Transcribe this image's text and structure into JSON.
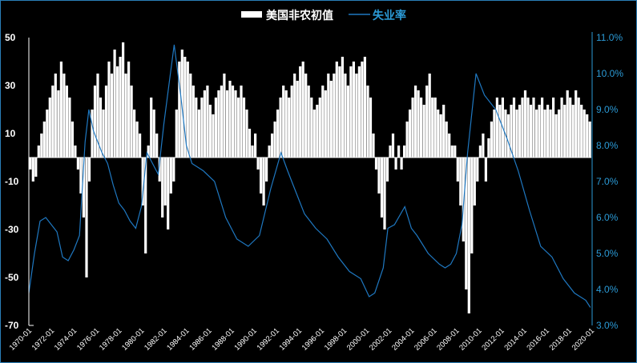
{
  "chart_data": {
    "type": "bar+line",
    "legend": {
      "placement": "top-center",
      "entries": [
        "美国非农初值",
        "失业率"
      ]
    },
    "colors": {
      "bars": "#ffffff",
      "line": "#1f78c1",
      "right_axis": "#2b9ad6",
      "background": "#000000"
    },
    "left_axis": {
      "ylim": [
        -70,
        50
      ],
      "ticks": [
        "50",
        "30",
        "10",
        "-10",
        "-30",
        "-50",
        "-70"
      ]
    },
    "right_axis": {
      "ylim": [
        3.0,
        11.0
      ],
      "ticks": [
        "11.0%",
        "10.0%",
        "9.0%",
        "8.0%",
        "7.0%",
        "6.0%",
        "5.0%",
        "4.0%",
        "3.0%"
      ]
    },
    "x_axis": {
      "range": [
        "1970-01",
        "2020-01"
      ],
      "ticks": [
        "1970-01",
        "1972-01",
        "1974-01",
        "1976-01",
        "1978-01",
        "1980-01",
        "1982-01",
        "1984-01",
        "1986-01",
        "1988-01",
        "1990-01",
        "1992-01",
        "1994-01",
        "1996-01",
        "1998-01",
        "2000-01",
        "2002-01",
        "2004-01",
        "2006-01",
        "2008-01",
        "2010-01",
        "2012-01",
        "2014-01",
        "2016-01",
        "2018-01",
        "2020-01"
      ]
    },
    "grid": false,
    "series": [
      {
        "name": "美国非农初值",
        "kind": "bar",
        "axis": "left",
        "start": "1970-01",
        "frequency": "quarterly",
        "values": [
          -5,
          -10,
          -8,
          5,
          10,
          15,
          20,
          25,
          30,
          35,
          28,
          40,
          35,
          30,
          25,
          15,
          5,
          -5,
          -15,
          -25,
          -50,
          -10,
          20,
          30,
          35,
          25,
          20,
          30,
          40,
          35,
          45,
          38,
          42,
          48,
          35,
          40,
          30,
          20,
          15,
          10,
          -20,
          -40,
          5,
          25,
          20,
          10,
          -10,
          -25,
          -20,
          -30,
          -15,
          -10,
          20,
          40,
          45,
          42,
          40,
          35,
          30,
          25,
          20,
          25,
          28,
          30,
          22,
          18,
          25,
          28,
          30,
          35,
          28,
          32,
          30,
          28,
          25,
          30,
          25,
          20,
          12,
          5,
          10,
          -5,
          -15,
          -20,
          -10,
          5,
          10,
          15,
          20,
          25,
          30,
          28,
          25,
          30,
          35,
          32,
          38,
          40,
          35,
          30,
          25,
          20,
          22,
          25,
          30,
          28,
          35,
          32,
          35,
          40,
          38,
          42,
          35,
          30,
          38,
          40,
          35,
          38,
          40,
          42,
          30,
          25,
          10,
          -5,
          -15,
          -25,
          -30,
          -10,
          5,
          10,
          -5,
          5,
          -5,
          5,
          15,
          20,
          25,
          30,
          28,
          25,
          22,
          30,
          35,
          25,
          25,
          20,
          18,
          22,
          15,
          10,
          5,
          5,
          -10,
          -20,
          -35,
          -55,
          -65,
          -40,
          -20,
          -10,
          5,
          10,
          -10,
          8,
          15,
          20,
          25,
          22,
          25,
          20,
          18,
          22,
          25,
          20,
          22,
          25,
          28,
          25,
          22,
          25,
          20,
          22,
          25,
          20,
          22,
          20,
          25,
          18,
          20,
          25,
          22,
          28,
          25,
          22,
          28,
          25,
          22,
          20,
          18,
          15
        ]
      },
      {
        "name": "失业率",
        "kind": "line",
        "axis": "right",
        "unit": "%",
        "points": [
          [
            "1970-01",
            3.9
          ],
          [
            "1970-07",
            5.0
          ],
          [
            "1971-01",
            5.9
          ],
          [
            "1971-07",
            6.0
          ],
          [
            "1972-01",
            5.8
          ],
          [
            "1972-07",
            5.6
          ],
          [
            "1973-01",
            4.9
          ],
          [
            "1973-07",
            4.8
          ],
          [
            "1974-01",
            5.1
          ],
          [
            "1974-07",
            5.5
          ],
          [
            "1975-01",
            8.1
          ],
          [
            "1975-05",
            9.0
          ],
          [
            "1975-10",
            8.4
          ],
          [
            "1976-07",
            7.8
          ],
          [
            "1977-01",
            7.5
          ],
          [
            "1977-07",
            6.9
          ],
          [
            "1978-01",
            6.4
          ],
          [
            "1978-07",
            6.2
          ],
          [
            "1979-01",
            5.9
          ],
          [
            "1979-07",
            5.7
          ],
          [
            "1980-01",
            6.3
          ],
          [
            "1980-07",
            7.8
          ],
          [
            "1981-01",
            7.5
          ],
          [
            "1981-07",
            7.2
          ],
          [
            "1982-01",
            8.6
          ],
          [
            "1982-07",
            9.8
          ],
          [
            "1982-12",
            10.8
          ],
          [
            "1983-07",
            9.4
          ],
          [
            "1984-01",
            8.0
          ],
          [
            "1984-07",
            7.5
          ],
          [
            "1985-07",
            7.3
          ],
          [
            "1986-07",
            7.0
          ],
          [
            "1987-07",
            6.0
          ],
          [
            "1988-07",
            5.4
          ],
          [
            "1989-07",
            5.2
          ],
          [
            "1990-07",
            5.5
          ],
          [
            "1991-07",
            6.8
          ],
          [
            "1992-06",
            7.8
          ],
          [
            "1993-01",
            7.3
          ],
          [
            "1993-07",
            6.9
          ],
          [
            "1994-07",
            6.1
          ],
          [
            "1995-07",
            5.7
          ],
          [
            "1996-07",
            5.4
          ],
          [
            "1997-07",
            4.9
          ],
          [
            "1998-07",
            4.5
          ],
          [
            "1999-07",
            4.3
          ],
          [
            "2000-04",
            3.8
          ],
          [
            "2000-10",
            3.9
          ],
          [
            "2001-07",
            4.6
          ],
          [
            "2001-12",
            5.7
          ],
          [
            "2002-07",
            5.8
          ],
          [
            "2003-06",
            6.3
          ],
          [
            "2004-01",
            5.7
          ],
          [
            "2004-07",
            5.5
          ],
          [
            "2005-07",
            5.0
          ],
          [
            "2006-07",
            4.7
          ],
          [
            "2007-01",
            4.6
          ],
          [
            "2007-07",
            4.7
          ],
          [
            "2008-01",
            5.0
          ],
          [
            "2008-07",
            5.8
          ],
          [
            "2009-01",
            7.8
          ],
          [
            "2009-10",
            10.0
          ],
          [
            "2010-07",
            9.4
          ],
          [
            "2011-07",
            9.0
          ],
          [
            "2012-07",
            8.2
          ],
          [
            "2013-07",
            7.3
          ],
          [
            "2014-07",
            6.2
          ],
          [
            "2015-07",
            5.2
          ],
          [
            "2016-07",
            4.9
          ],
          [
            "2017-07",
            4.3
          ],
          [
            "2018-07",
            3.9
          ],
          [
            "2019-07",
            3.7
          ],
          [
            "2019-12",
            3.5
          ]
        ]
      }
    ]
  }
}
